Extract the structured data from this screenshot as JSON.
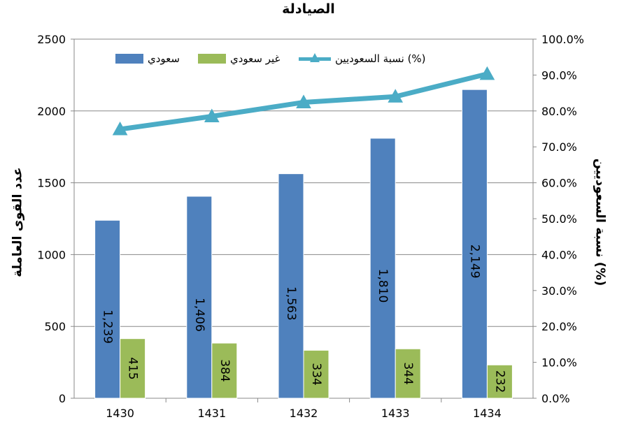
{
  "chart_data": {
    "type": "bar",
    "title": "الصيادلة",
    "ylabel": "عدد القوى العاملة",
    "ylabel_right": "نسبة السعوديين (%)",
    "categories": [
      "1430",
      "1431",
      "1432",
      "1433",
      "1434"
    ],
    "ylim": [
      0,
      2500
    ],
    "y_ticks": [
      "0",
      "500",
      "1000",
      "1500",
      "2000",
      "2500"
    ],
    "ylim_right": [
      0,
      100
    ],
    "y_right_ticks": [
      "0.0%",
      "10.0%",
      "20.0%",
      "30.0%",
      "40.0%",
      "50.0%",
      "60.0%",
      "70.0%",
      "80.0%",
      "90.0%",
      "100.0%"
    ],
    "grid": true,
    "legend_position": "top",
    "series": [
      {
        "name": "سعودي",
        "kind": "bar",
        "axis": "left",
        "color": "#4f81bd",
        "values": [
          1239,
          1406,
          1563,
          1810,
          2149
        ],
        "labels": [
          "1,239",
          "1,406",
          "1,563",
          "1,810",
          "2,149"
        ]
      },
      {
        "name": "غير سعودي",
        "kind": "bar",
        "axis": "left",
        "color": "#9bbb59",
        "values": [
          415,
          384,
          334,
          344,
          232
        ],
        "labels": [
          "415",
          "384",
          "334",
          "344",
          "232"
        ]
      },
      {
        "name": "نسبة السعوديين (%)",
        "kind": "line",
        "axis": "right",
        "color": "#4bacc6",
        "marker": "triangle",
        "values": [
          74.9,
          78.5,
          82.4,
          84.0,
          90.3
        ]
      }
    ]
  }
}
